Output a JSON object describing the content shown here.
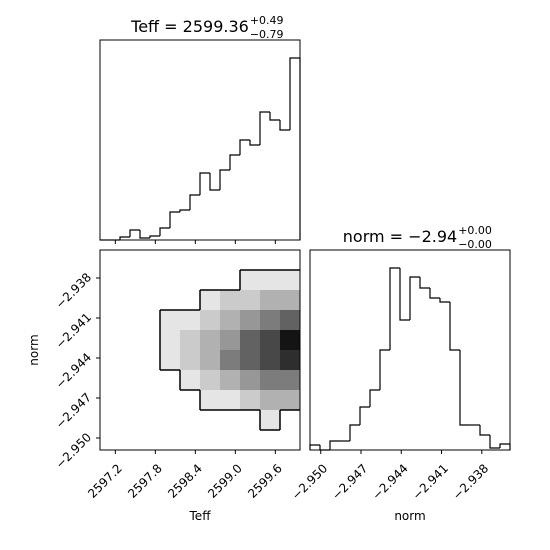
{
  "chart_data": [
    {
      "type": "histogram",
      "title": "Teff = 2599.36",
      "title_sup": "+0.49",
      "title_sub": "−0.79",
      "bins": [
        2596.97,
        2597.12,
        2597.27,
        2597.42,
        2597.57,
        2597.72,
        2597.87,
        2598.02,
        2598.17,
        2598.32,
        2598.47,
        2598.62,
        2598.77,
        2598.92,
        2599.07,
        2599.22,
        2599.37,
        2599.52,
        2599.67,
        2599.82,
        2599.97
      ],
      "values": [
        0,
        0,
        3,
        10,
        2,
        4,
        12,
        28,
        30,
        45,
        67,
        50,
        70,
        85,
        100,
        95,
        128,
        120,
        110,
        182
      ],
      "xlim": [
        2596.97,
        2599.97
      ],
      "ylim": [
        0,
        200
      ],
      "xticks": [
        2597.2,
        2597.8,
        2598.4,
        {
          "value": 2599.0,
          "label": "2599.0"
        },
        2599.6
      ],
      "color": "#000000"
    },
    {
      "type": "histogram2d",
      "xlabel": "Teff",
      "ylabel": "norm",
      "xlim": [
        2596.97,
        2599.97
      ],
      "ylim": [
        -2.9509,
        -2.9359
      ],
      "xticks": [
        2597.2,
        2597.8,
        2598.4,
        {
          "value": 2599.0,
          "label": "2599.0"
        },
        2599.6
      ],
      "yticks": [
        {
          "value": -2.95,
          "label": "−2.950"
        },
        {
          "value": -2.947,
          "label": "−2.947"
        },
        {
          "value": -2.944,
          "label": "−2.944"
        },
        {
          "value": -2.941,
          "label": "−2.941"
        },
        {
          "value": -2.938,
          "label": "−2.938"
        }
      ],
      "values": [
        [
          0,
          0,
          0,
          0,
          0,
          0,
          0,
          0,
          0,
          0
        ],
        [
          0,
          0,
          0,
          0,
          0,
          0,
          0,
          1,
          1,
          1
        ],
        [
          0,
          0,
          0,
          0,
          0,
          1,
          2,
          2,
          3,
          3
        ],
        [
          0,
          0,
          0,
          1,
          1,
          2,
          3,
          4,
          5,
          6
        ],
        [
          0,
          0,
          0,
          1,
          2,
          3,
          4,
          6,
          7,
          9
        ],
        [
          0,
          0,
          0,
          1,
          2,
          3,
          5,
          6,
          7,
          8
        ],
        [
          0,
          0,
          0,
          0,
          1,
          2,
          3,
          4,
          5,
          5
        ],
        [
          0,
          0,
          0,
          0,
          0,
          1,
          1,
          2,
          3,
          3
        ],
        [
          0,
          0,
          0,
          0,
          0,
          0,
          0,
          0,
          1,
          0
        ],
        [
          0,
          0,
          0,
          0,
          0,
          0,
          0,
          0,
          0,
          0
        ]
      ]
    },
    {
      "type": "histogram",
      "title": "norm = −2.94",
      "title_sup": "+0.00",
      "title_sub": "−0.00",
      "xlabel": "norm",
      "bins": [
        -2.9508,
        -2.950055,
        -2.94931,
        -2.948565,
        -2.94782,
        -2.947075,
        -2.94633,
        -2.945585,
        -2.94484,
        -2.944095,
        -2.94335,
        -2.942605,
        -2.94186,
        -2.941115,
        -2.94037,
        -2.939625,
        -2.93888,
        -2.938135,
        -2.93739,
        -2.936645,
        -2.9359
      ],
      "values": [
        5,
        0,
        9,
        9,
        25,
        43,
        60,
        100,
        182,
        130,
        173,
        162,
        152,
        148,
        100,
        25,
        25,
        15,
        2,
        6
      ],
      "xlim": [
        -2.9508,
        -2.9359
      ],
      "ylim": [
        0,
        200
      ],
      "xticks": [
        {
          "value": -2.95,
          "label": "−2.950"
        },
        {
          "value": -2.947,
          "label": "−2.947"
        },
        {
          "value": -2.944,
          "label": "−2.944"
        },
        {
          "value": -2.941,
          "label": "−2.941"
        },
        {
          "value": -2.938,
          "label": "−2.938"
        }
      ],
      "color": "#000000"
    }
  ]
}
